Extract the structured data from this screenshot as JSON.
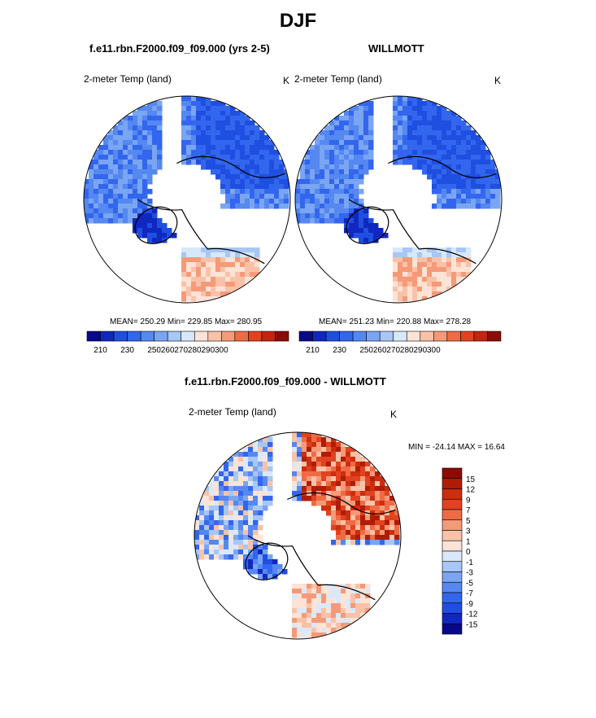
{
  "figure": {
    "title": "DJF"
  },
  "palette": {
    "abs": [
      "#08088c",
      "#1028c0",
      "#1f4fe0",
      "#3366ee",
      "#5588f0",
      "#7aa5f2",
      "#a8c6f6",
      "#d6e8fa",
      "#fde3d6",
      "#f9c2a8",
      "#f59a78",
      "#ef6b44",
      "#e2421f",
      "#c42410",
      "#8c0c04"
    ],
    "diff": [
      "#8c0c04",
      "#b01c08",
      "#cc2e0e",
      "#e2421f",
      "#ef6b44",
      "#f59a78",
      "#f9c2a8",
      "#fde3d6",
      "#dbe8fa",
      "#a8c6f6",
      "#7aa5f2",
      "#5588f0",
      "#3366ee",
      "#1f4fe0",
      "#1028c0",
      "#08088c"
    ],
    "coast": "#000000",
    "ocean": "#ffffff"
  },
  "panels": [
    {
      "name": "model",
      "title": "f.e11.rbn.F2000.f09_f09.000 (yrs 2-5)",
      "var_label": "2-meter Temp (land)",
      "units": "K",
      "stats": "MEAN= 250.29  Min= 229.85  Max= 280.95",
      "field_base": 242
    },
    {
      "name": "obs",
      "title": "WILLMOTT",
      "var_label": "2-meter Temp (land)",
      "units": "K",
      "stats": "MEAN= 251.23  Min= 220.88  Max= 278.28",
      "field_base": 243
    },
    {
      "name": "diff",
      "title": "f.e11.rbn.F2000.f09_f09.000 - WILLMOTT",
      "var_label": "2-meter Temp (land)",
      "units": "K",
      "stats": "MIN = -24.14 MAX =  16.64"
    }
  ],
  "chart_data": [
    {
      "type": "heatmap",
      "title": "f.e11.rbn.F2000.f09_f09.000 (yrs 2-5)",
      "colorbar_ticks": [
        "210",
        "230",
        "250",
        "260",
        "270",
        "280",
        "290",
        "300"
      ],
      "summary": {
        "mean": 250.29,
        "min": 229.85,
        "max": 280.95
      },
      "units": "K"
    },
    {
      "type": "heatmap",
      "title": "WILLMOTT",
      "colorbar_ticks": [
        "210",
        "230",
        "250",
        "260",
        "270",
        "280",
        "290",
        "300"
      ],
      "summary": {
        "mean": 251.23,
        "min": 220.88,
        "max": 278.28
      },
      "units": "K"
    },
    {
      "type": "heatmap",
      "title": "f.e11.rbn.F2000.f09_f09.000 - WILLMOTT",
      "colorbar_ticks": [
        "15",
        "12",
        "9",
        "7",
        "5",
        "3",
        "1",
        "0",
        "-1",
        "-3",
        "-5",
        "-7",
        "-9",
        "-12",
        "-15"
      ],
      "summary": {
        "min": -24.14,
        "max": 16.64
      },
      "units": "K"
    }
  ]
}
